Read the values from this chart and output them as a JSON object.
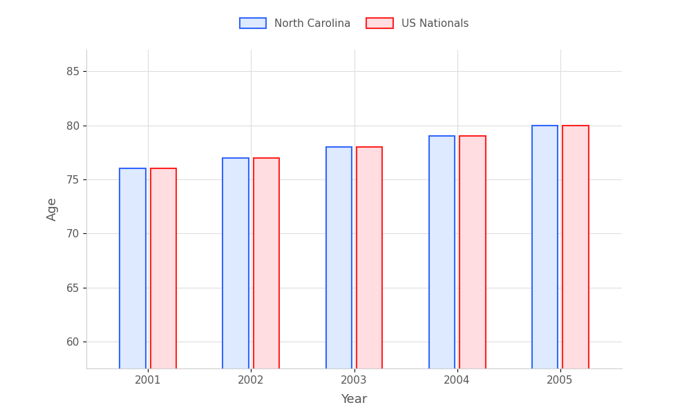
{
  "xlabel": "Year",
  "ylabel": "Age",
  "years": [
    2001,
    2002,
    2003,
    2004,
    2005
  ],
  "nc_values": [
    76,
    77,
    78,
    79,
    80
  ],
  "us_values": [
    76,
    77,
    78,
    79,
    80
  ],
  "nc_bar_color": "#ddeaff",
  "nc_edge_color": "#3366ff",
  "us_bar_color": "#ffdde0",
  "us_edge_color": "#ff2222",
  "ylim": [
    57.5,
    87
  ],
  "yticks": [
    60,
    65,
    70,
    75,
    80,
    85
  ],
  "bar_width": 0.25,
  "bar_gap": 0.05,
  "background_color": "#ffffff",
  "grid_color": "#dddddd",
  "title_fontsize": 16,
  "axis_label_fontsize": 13,
  "tick_fontsize": 11,
  "legend_labels": [
    "North Carolina",
    "US Nationals"
  ],
  "spine_color": "#cccccc"
}
